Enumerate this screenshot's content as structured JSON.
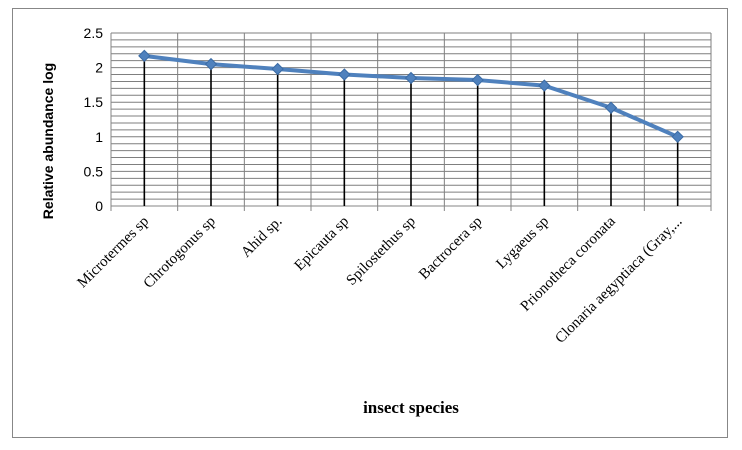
{
  "chart_data": {
    "type": "line",
    "title": "",
    "xlabel": "insect species",
    "ylabel": "Relative abundance log",
    "categories": [
      "Microtermes sp",
      "Chrotogonus sp",
      "Ahid sp.",
      "Epicauta sp",
      "Spilostethus sp",
      "Bactrocera sp",
      "Lygaeus sp",
      "Prionotheca coronata",
      "Clonaria aegyptiaca (Gray,..."
    ],
    "series": [
      {
        "values": [
          2.17,
          2.05,
          1.98,
          1.9,
          1.85,
          1.82,
          1.74,
          1.42,
          1.0
        ]
      }
    ],
    "ylim": [
      0,
      2.5
    ],
    "yticks": [
      "0",
      "0.5",
      "1",
      "1.5",
      "2",
      "2.5"
    ],
    "grid": true,
    "drop_lines": true,
    "legend": "none",
    "colors": {
      "line": "#4F81BD",
      "marker": "#4F81BD",
      "drop_line": "#000000",
      "grid": "#7F7F7F"
    }
  }
}
